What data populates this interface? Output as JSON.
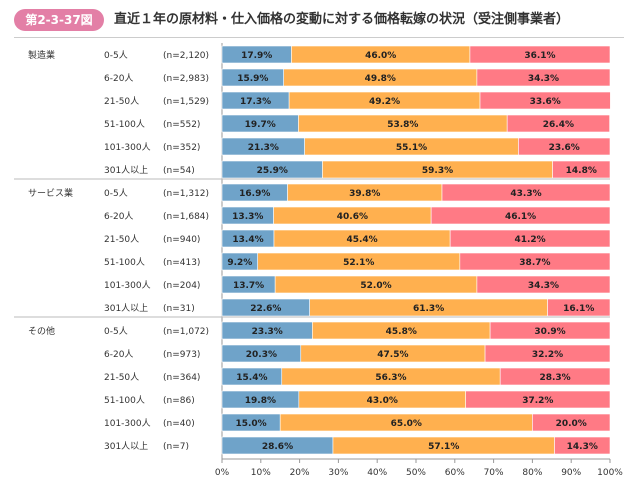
{
  "figure": {
    "number": "第2-3-37図",
    "title": "直近１年の原材料・仕入価格の変動に対する価格転嫁の状況（受注側事業者）"
  },
  "chart_data": {
    "type": "bar",
    "orientation": "horizontal",
    "stacked": true,
    "percent_stacked": true,
    "xlim": [
      0,
      100
    ],
    "x_ticks": [
      "0%",
      "10%",
      "20%",
      "30%",
      "40%",
      "50%",
      "60%",
      "70%",
      "80%",
      "90%",
      "100%"
    ],
    "series_colors": [
      "#6fa3c9",
      "#ffb04f",
      "#ff7a85"
    ],
    "groups": [
      {
        "label": "製造業",
        "rows": [
          {
            "size": "0-5人",
            "n": "(n=2,120)",
            "values": [
              17.9,
              46.0,
              36.1
            ],
            "labels": [
              "17.9%",
              "46.0%",
              "36.1%"
            ]
          },
          {
            "size": "6-20人",
            "n": "(n=2,983)",
            "values": [
              15.9,
              49.8,
              34.3
            ],
            "labels": [
              "15.9%",
              "49.8%",
              "34.3%"
            ]
          },
          {
            "size": "21-50人",
            "n": "(n=1,529)",
            "values": [
              17.3,
              49.2,
              33.6
            ],
            "labels": [
              "17.3%",
              "49.2%",
              "33.6%"
            ]
          },
          {
            "size": "51-100人",
            "n": "(n=552)",
            "values": [
              19.7,
              53.8,
              26.4
            ],
            "labels": [
              "19.7%",
              "53.8%",
              "26.4%"
            ]
          },
          {
            "size": "101-300人",
            "n": "(n=352)",
            "values": [
              21.3,
              55.1,
              23.6
            ],
            "labels": [
              "21.3%",
              "55.1%",
              "23.6%"
            ]
          },
          {
            "size": "301人以上",
            "n": "(n=54)",
            "values": [
              25.9,
              59.3,
              14.8
            ],
            "labels": [
              "25.9%",
              "59.3%",
              "14.8%"
            ]
          }
        ]
      },
      {
        "label": "サービス業",
        "rows": [
          {
            "size": "0-5人",
            "n": "(n=1,312)",
            "values": [
              16.9,
              39.8,
              43.3
            ],
            "labels": [
              "16.9%",
              "39.8%",
              "43.3%"
            ]
          },
          {
            "size": "6-20人",
            "n": "(n=1,684)",
            "values": [
              13.3,
              40.6,
              46.1
            ],
            "labels": [
              "13.3%",
              "40.6%",
              "46.1%"
            ]
          },
          {
            "size": "21-50人",
            "n": "(n=940)",
            "values": [
              13.4,
              45.4,
              41.2
            ],
            "labels": [
              "13.4%",
              "45.4%",
              "41.2%"
            ]
          },
          {
            "size": "51-100人",
            "n": "(n=413)",
            "values": [
              9.2,
              52.1,
              38.7
            ],
            "labels": [
              "9.2%",
              "52.1%",
              "38.7%"
            ]
          },
          {
            "size": "101-300人",
            "n": "(n=204)",
            "values": [
              13.7,
              52.0,
              34.3
            ],
            "labels": [
              "13.7%",
              "52.0%",
              "34.3%"
            ]
          },
          {
            "size": "301人以上",
            "n": "(n=31)",
            "values": [
              22.6,
              61.3,
              16.1
            ],
            "labels": [
              "22.6%",
              "61.3%",
              "16.1%"
            ]
          }
        ]
      },
      {
        "label": "その他",
        "rows": [
          {
            "size": "0-5人",
            "n": "(n=1,072)",
            "values": [
              23.3,
              45.8,
              30.9
            ],
            "labels": [
              "23.3%",
              "45.8%",
              "30.9%"
            ]
          },
          {
            "size": "6-20人",
            "n": "(n=973)",
            "values": [
              20.3,
              47.5,
              32.2
            ],
            "labels": [
              "20.3%",
              "47.5%",
              "32.2%"
            ]
          },
          {
            "size": "21-50人",
            "n": "(n=364)",
            "values": [
              15.4,
              56.3,
              28.3
            ],
            "labels": [
              "15.4%",
              "56.3%",
              "28.3%"
            ]
          },
          {
            "size": "51-100人",
            "n": "(n=86)",
            "values": [
              19.8,
              43.0,
              37.2
            ],
            "labels": [
              "19.8%",
              "43.0%",
              "37.2%"
            ]
          },
          {
            "size": "101-300人",
            "n": "(n=40)",
            "values": [
              15.0,
              65.0,
              20.0
            ],
            "labels": [
              "15.0%",
              "65.0%",
              "20.0%"
            ]
          },
          {
            "size": "301人以上",
            "n": "(n=7)",
            "values": [
              28.6,
              57.1,
              14.3
            ],
            "labels": [
              "28.6%",
              "57.1%",
              "14.3%"
            ]
          }
        ]
      }
    ]
  }
}
